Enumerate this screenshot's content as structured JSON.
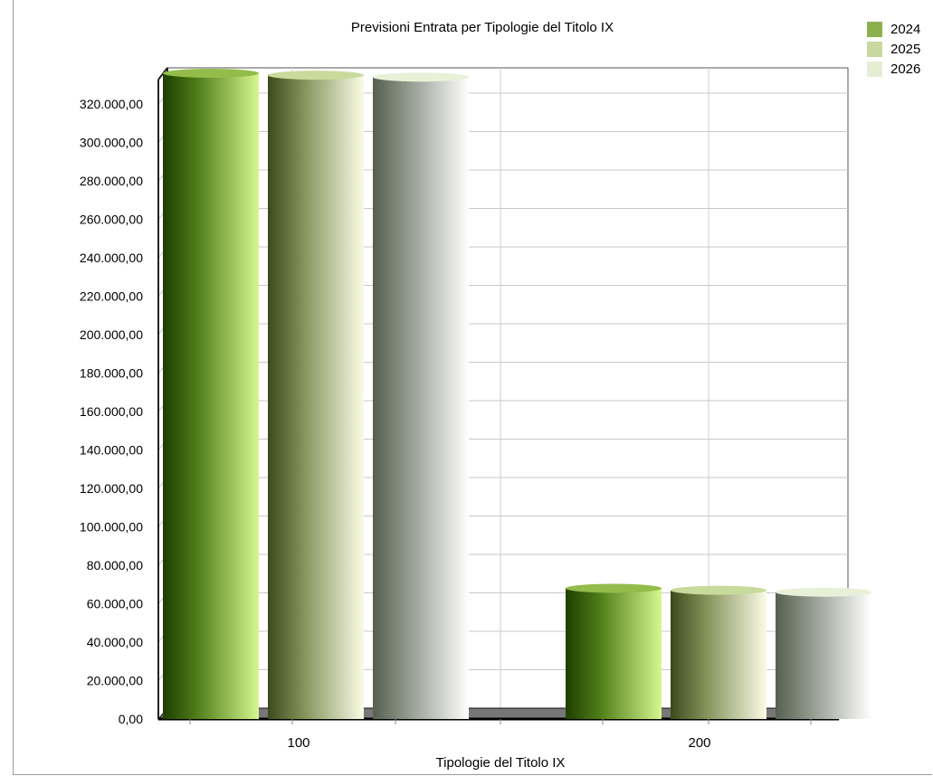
{
  "chart_data": {
    "type": "bar",
    "title": "Previsioni Entrata per Tipologie del Titolo IX",
    "xlabel": "Tipologie del Titolo IX",
    "ylabel": "",
    "categories": [
      "100",
      "200"
    ],
    "series": [
      {
        "name": "2024",
        "values": [
          336000,
          68000
        ]
      },
      {
        "name": "2025",
        "values": [
          335000,
          67000
        ]
      },
      {
        "name": "2026",
        "values": [
          334000,
          66000
        ]
      }
    ],
    "ylim": [
      0,
      336000
    ],
    "yticks": [
      0,
      20000,
      40000,
      60000,
      80000,
      100000,
      120000,
      140000,
      160000,
      180000,
      200000,
      220000,
      240000,
      260000,
      280000,
      300000,
      320000
    ],
    "ytick_labels": [
      "0,00",
      "20.000,00",
      "40.000,00",
      "60.000,00",
      "80.000,00",
      "100.000,00",
      "120.000,00",
      "140.000,00",
      "160.000,00",
      "180.000,00",
      "200.000,00",
      "220.000,00",
      "240.000,00",
      "260.000,00",
      "280.000,00",
      "300.000,00",
      "320.000,00"
    ],
    "grid": true,
    "legend_position": "top-right",
    "colors": {
      "2024": "#8cb04c",
      "2025": "#c7d9a0",
      "2026": "#e4eed4"
    }
  }
}
